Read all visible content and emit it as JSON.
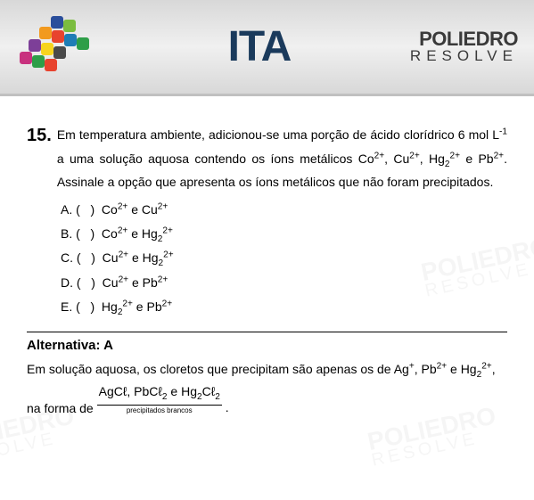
{
  "header": {
    "title": "ITA",
    "brand_top": "POLIEDRO",
    "brand_bottom": "RESOLVE",
    "colors": {
      "header_gradient_top": "#d8d8d8",
      "header_gradient_mid": "#f0f0f0",
      "title_color": "#1a3a5c",
      "brand_color": "#3a3a3a"
    },
    "puzzle_colors": [
      "#e8432e",
      "#f29a1f",
      "#f7d41f",
      "#7bbd3f",
      "#2e9e48",
      "#1f7db5",
      "#2a4e9b",
      "#7d3f98",
      "#c8317e",
      "#4a4a4a"
    ]
  },
  "watermark": {
    "top": "POLIEDRO",
    "bottom": "RESOLVE"
  },
  "question": {
    "number": "15.",
    "body_html": "Em temperatura ambiente, adicionou-se uma porção de ácido clorídrico 6 mol L<sup>-1</sup> a uma solução aquosa contendo os íons metálicos Co<sup>2+</sup>, Cu<sup>2+</sup>, Hg<sub>2</sub><sup>2+</sup> e Pb<sup>2+</sup>. Assinale a opção que apresenta os íons metálicos que não foram precipitados.",
    "options": [
      {
        "letter": "A.",
        "mark": "(   )",
        "html": "Co<sup>2+</sup> e Cu<sup>2+</sup>"
      },
      {
        "letter": "B.",
        "mark": "(   )",
        "html": "Co<sup>2+</sup> e Hg<sub>2</sub><sup>2+</sup>"
      },
      {
        "letter": "C.",
        "mark": "(   )",
        "html": "Cu<sup>2+</sup> e Hg<sub>2</sub><sup>2+</sup>"
      },
      {
        "letter": "D.",
        "mark": "(   )",
        "html": "Cu<sup>2+</sup> e Pb<sup>2+</sup>"
      },
      {
        "letter": "E.",
        "mark": "(   )",
        "html": "Hg<sub>2</sub><sup>2+</sup> e Pb<sup>2+</sup>"
      }
    ]
  },
  "answer": {
    "label": "Alternativa: A",
    "explanation_prefix_html": "Em solução aquosa, os cloretos que precipitam são apenas os de Ag<sup>+</sup>, Pb<sup>2+</sup> e Hg<sub>2</sub><sup>2+</sup>, na forma de ",
    "underbrace_top_html": "AgCℓ, PbCℓ<sub>2</sub> e Hg<sub>2</sub>Cℓ<sub>2</sub>",
    "underbrace_label": "precipitados brancos",
    "suffix": " ."
  }
}
